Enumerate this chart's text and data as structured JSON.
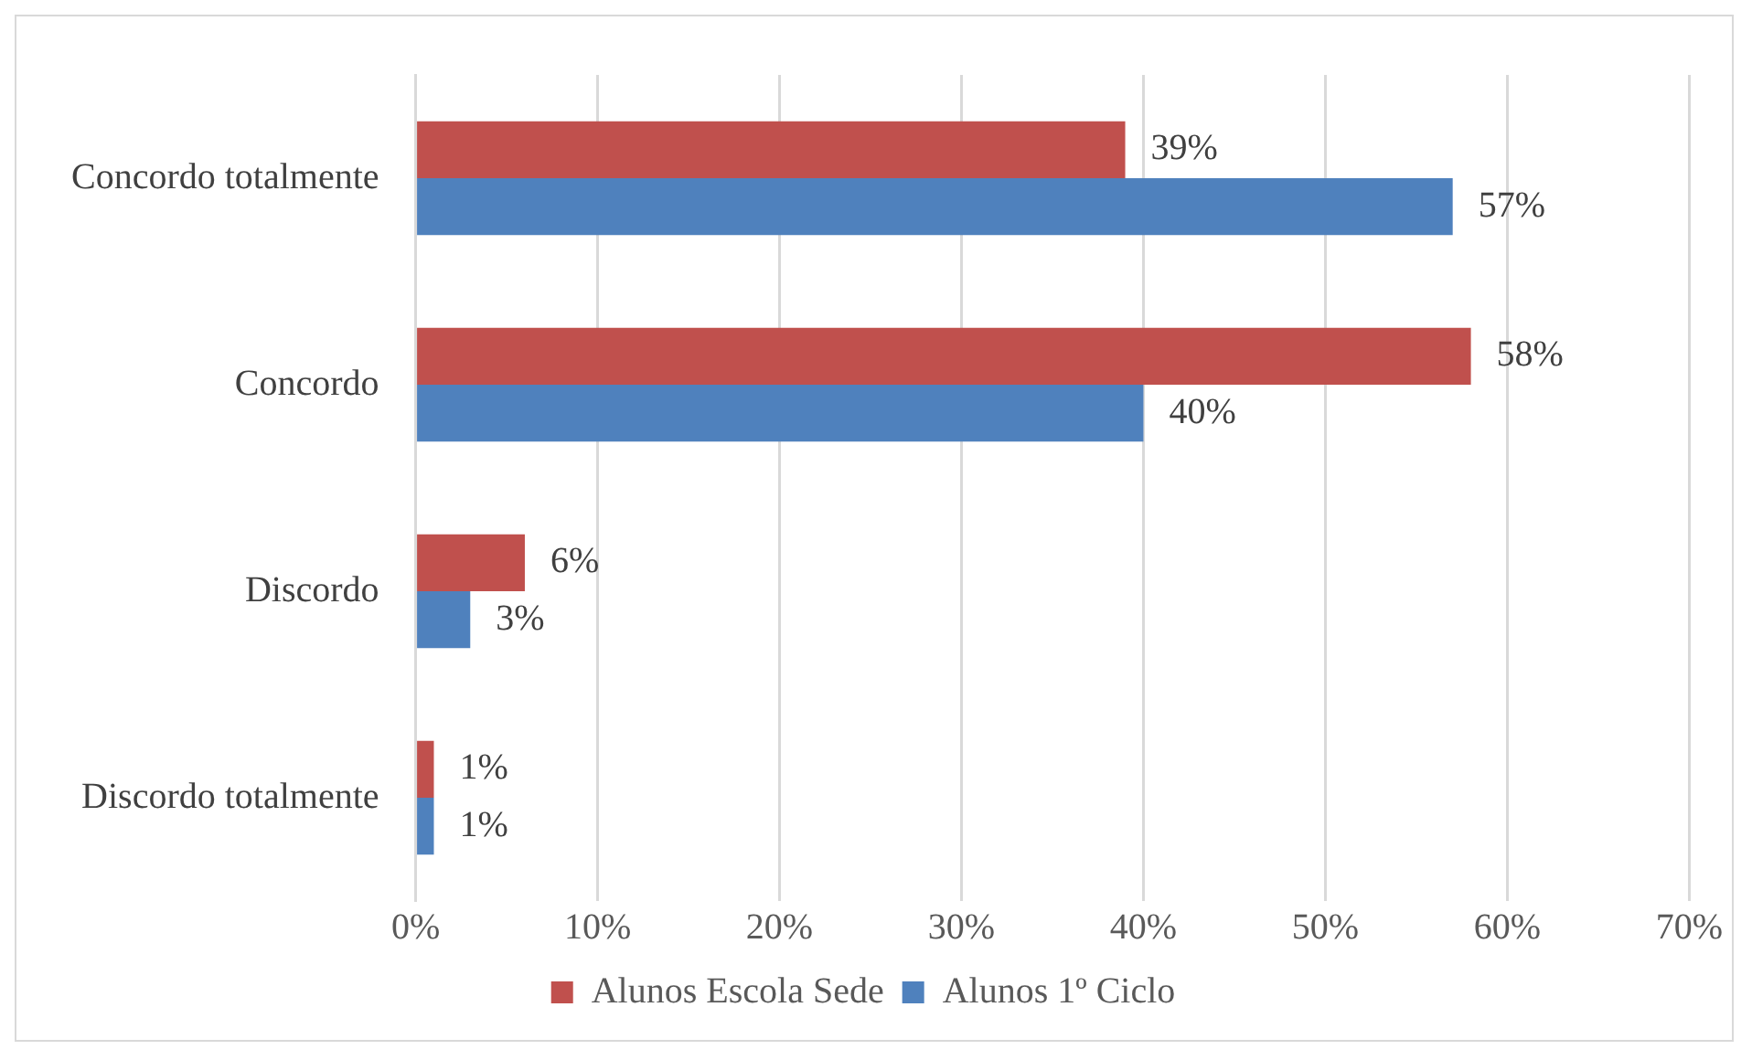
{
  "chart_data": {
    "type": "bar",
    "orientation": "horizontal",
    "categories": [
      "Concordo totalmente",
      "Concordo",
      "Discordo",
      "Discordo totalmente"
    ],
    "series": [
      {
        "name": "Alunos Escola Sede",
        "color": "#c0504d",
        "values": [
          39,
          58,
          6,
          1
        ],
        "value_labels": [
          "39%",
          "58%",
          "6%",
          "1%"
        ]
      },
      {
        "name": "Alunos 1º Ciclo",
        "color": "#4f81bd",
        "values": [
          57,
          40,
          3,
          1
        ],
        "value_labels": [
          "57%",
          "40%",
          "3%",
          "1%"
        ]
      }
    ],
    "xlim": [
      0,
      70
    ],
    "xticks": [
      {
        "value": 0,
        "label": "0%"
      },
      {
        "value": 10,
        "label": "10%"
      },
      {
        "value": 20,
        "label": "20%"
      },
      {
        "value": 30,
        "label": "30%"
      },
      {
        "value": 40,
        "label": "40%"
      },
      {
        "value": 50,
        "label": "50%"
      },
      {
        "value": 60,
        "label": "60%"
      },
      {
        "value": 70,
        "label": "70%"
      }
    ],
    "grid": "x",
    "legend": "bottom"
  }
}
